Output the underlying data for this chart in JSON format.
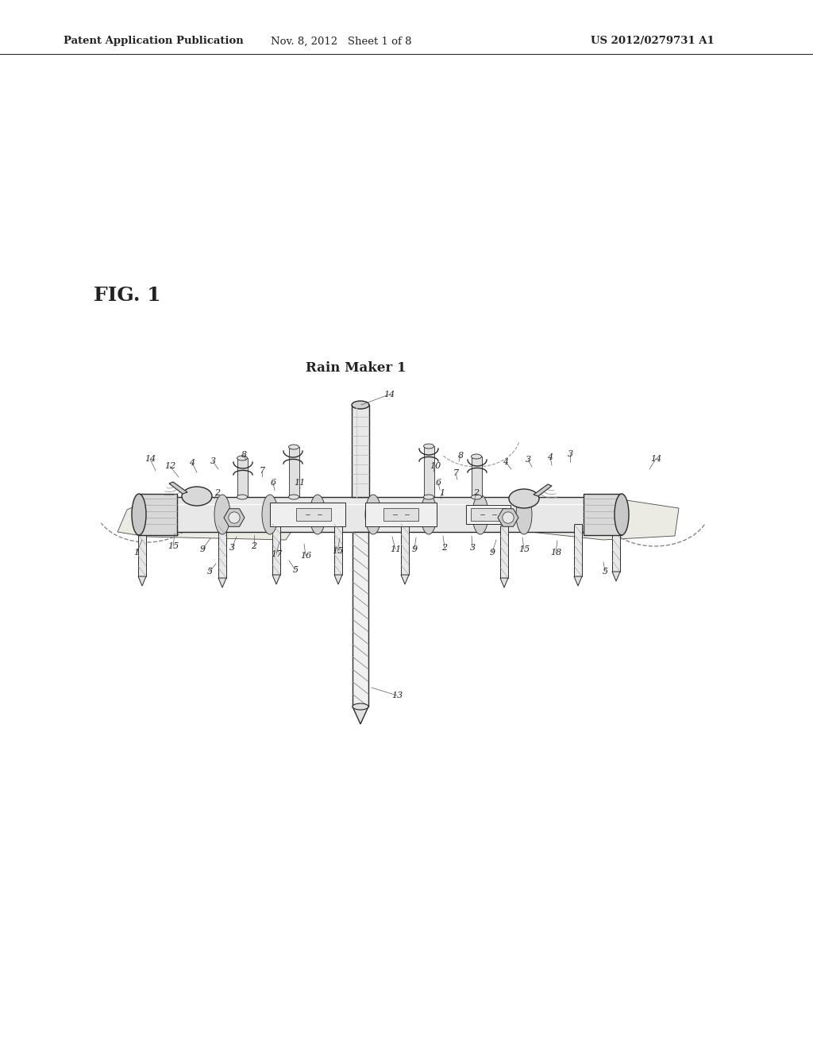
{
  "background_color": "#ffffff",
  "header_left": "Patent Application Publication",
  "header_center": "Nov. 8, 2012   Sheet 1 of 8",
  "header_right": "US 2012/0279731 A1",
  "fig_label": "FIG. 1",
  "diagram_title": "Rain Maker 1",
  "line_color": "#2a2a2a",
  "fill_light": "#e8e8e8",
  "fill_mid": "#d0d0d0",
  "fill_dark": "#b0b0b0",
  "text_color": "#222222",
  "header_fontsize": 9.5,
  "fig_fontsize": 18,
  "title_fontsize": 12,
  "ref_fontsize": 8
}
